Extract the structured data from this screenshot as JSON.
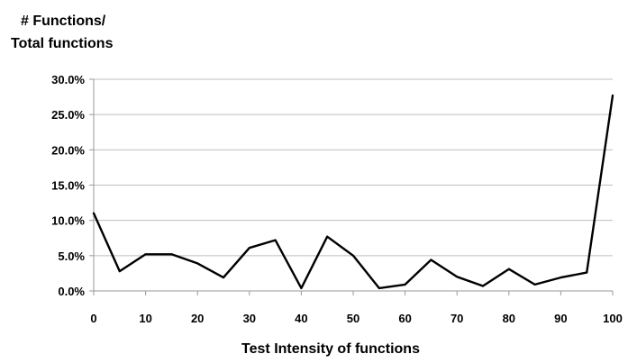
{
  "chart_data": {
    "type": "line",
    "ylabel": [
      "# Functions/",
      "Total functions"
    ],
    "xlabel": "Test Intensity of functions",
    "x": [
      0,
      5,
      10,
      15,
      20,
      25,
      30,
      35,
      40,
      45,
      50,
      55,
      60,
      65,
      70,
      75,
      80,
      85,
      90,
      95,
      100
    ],
    "values": [
      11.0,
      2.8,
      5.2,
      5.2,
      3.9,
      1.9,
      6.1,
      7.2,
      0.4,
      7.7,
      5.0,
      0.4,
      0.9,
      4.4,
      2.0,
      0.7,
      3.1,
      0.9,
      1.9,
      2.6,
      27.7
    ],
    "xlim": [
      0,
      100
    ],
    "ylim": [
      0,
      30
    ],
    "x_ticks": [
      0,
      10,
      20,
      30,
      40,
      50,
      60,
      70,
      80,
      90,
      100
    ],
    "x_tick_labels": [
      "0",
      "10",
      "20",
      "30",
      "40",
      "50",
      "60",
      "70",
      "80",
      "90",
      "100"
    ],
    "y_ticks": [
      0,
      5,
      10,
      15,
      20,
      25,
      30
    ],
    "y_tick_labels": [
      "0.0%",
      "5.0%",
      "10.0%",
      "15.0%",
      "20.0%",
      "25.0%",
      "30.0%"
    ],
    "grid": "horizontal",
    "line_color": "#000000"
  }
}
